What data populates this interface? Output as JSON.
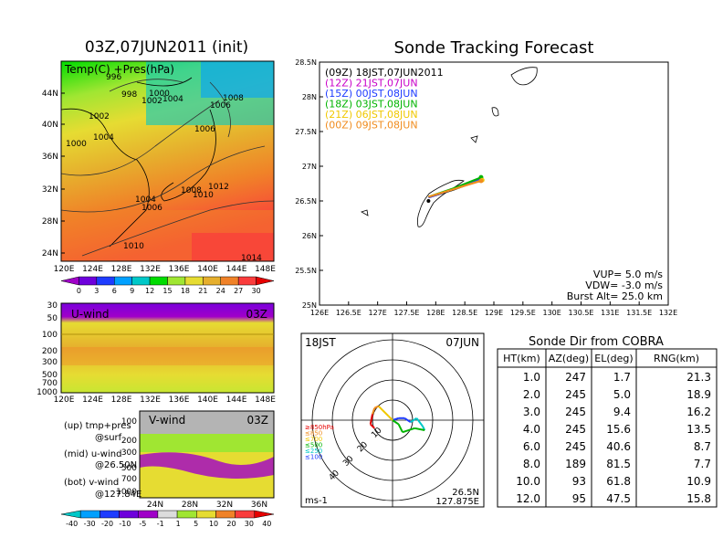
{
  "left_panel": {
    "title": "03Z,07JUN2011 (init)",
    "map": {
      "field_label": "Temp(C) +Pres(hPa)",
      "lat_ticks": [
        "44N",
        "40N",
        "36N",
        "32N",
        "28N",
        "24N"
      ],
      "lon_ticks": [
        "120E",
        "124E",
        "128E",
        "132E",
        "136E",
        "140E",
        "144E",
        "148E"
      ],
      "isobar_labels": [
        "996",
        "998",
        "1000",
        "1002",
        "1004",
        "1002",
        "1000",
        "1004",
        "1004",
        "1008",
        "1006",
        "1006",
        "1008",
        "1012",
        "1010",
        "1006",
        "1010",
        "1014"
      ],
      "colorbar_labels": [
        "0",
        "3",
        "6",
        "9",
        "12",
        "15",
        "18",
        "21",
        "24",
        "27",
        "30"
      ],
      "colorbar_colors": [
        "#a000c8",
        "#6e00dc",
        "#1e3cff",
        "#00a0ff",
        "#00c8c8",
        "#00dc00",
        "#a0e632",
        "#e6dc32",
        "#e6af2d",
        "#f08228",
        "#fa3c3c",
        "#e60000"
      ]
    },
    "u_panel": {
      "label": "U-wind",
      "time": "03Z",
      "y_ticks": [
        "30",
        "50",
        "100",
        "200",
        "300",
        "500",
        "700",
        "1000"
      ],
      "x_ticks": [
        "120E",
        "124E",
        "128E",
        "132E",
        "136E",
        "140E",
        "144E",
        "148E"
      ]
    },
    "v_panel": {
      "label": "V-wind",
      "time": "03Z",
      "y_ticks": [
        "100",
        "200",
        "300",
        "500",
        "700",
        "1000"
      ],
      "x_ticks": [
        "24N",
        "28N",
        "32N",
        "36N"
      ]
    },
    "legend_notes": [
      {
        "top": "(up) tmp+pres",
        "bottom": "@surf"
      },
      {
        "top": "(mid) u-wind",
        "bottom": "@26.50N"
      },
      {
        "top": "(bot) v-wind",
        "bottom": "@127.84E"
      }
    ],
    "wind_colorbar": {
      "labels": [
        "-40",
        "-30",
        "-20",
        "-10",
        "-5",
        "-1",
        "1",
        "5",
        "10",
        "20",
        "30",
        "40"
      ],
      "colors": [
        "#00c8c8",
        "#00a0ff",
        "#1e3cff",
        "#6e00dc",
        "#a000c8",
        "#dcdcdc",
        "#a0e632",
        "#e6dc32",
        "#f08228",
        "#fa3c3c",
        "#e60000"
      ]
    }
  },
  "tracking": {
    "title": "Sonde Tracking Forecast",
    "legend": [
      {
        "text": "(09Z)  18JST,07JUN2011",
        "color": "#000000"
      },
      {
        "text": "(12Z)  21JST,07JUN",
        "color": "#c800c8"
      },
      {
        "text": "(15Z)  00JST,08JUN",
        "color": "#1e3cff"
      },
      {
        "text": "(18Z)  03JST,08JUN",
        "color": "#00b400"
      },
      {
        "text": "(21Z)  06JST,08JUN",
        "color": "#f0c800"
      },
      {
        "text": "(00Z)  09JST,08JUN",
        "color": "#f08c1e"
      }
    ],
    "lat_ticks": [
      "28.5N",
      "28N",
      "27.5N",
      "27N",
      "26.5N",
      "26N",
      "25.5N",
      "25N"
    ],
    "lon_ticks": [
      "126E",
      "126.5E",
      "127E",
      "127.5E",
      "128E",
      "128.5E",
      "129E",
      "129.5E",
      "130E",
      "130.5E",
      "131E",
      "131.5E",
      "132E"
    ],
    "params": [
      "VUP= 5.0 m/s",
      "VDW= -3.0 m/s",
      "Burst Alt= 25.0 km"
    ]
  },
  "hodograph": {
    "time": "18JST",
    "date": "07JUN",
    "ring_labels": [
      "10",
      "20",
      "30",
      "40"
    ],
    "legend": [
      {
        "text": "≥850hPa",
        "color": "#e60000"
      },
      {
        "text": "≤850",
        "color": "#f08c1e"
      },
      {
        "text": "≤700",
        "color": "#f0c800"
      },
      {
        "text": "≤500",
        "color": "#00b400"
      },
      {
        "text": "≤250",
        "color": "#00c8c8"
      },
      {
        "text": "≤100",
        "color": "#1e3cff"
      }
    ],
    "units": "ms-1",
    "loc_lat": "26.5N",
    "loc_lon": "127.875E"
  },
  "sonde_dir": {
    "title": "Sonde Dir from COBRA",
    "headers": [
      "HT(km)",
      "AZ(deg)",
      "EL(deg)",
      "RNG(km)"
    ],
    "rows": [
      [
        "1.0",
        "247",
        "1.7",
        "21.3"
      ],
      [
        "2.0",
        "245",
        "5.0",
        "18.9"
      ],
      [
        "3.0",
        "245",
        "9.4",
        "16.2"
      ],
      [
        "4.0",
        "245",
        "15.6",
        "13.5"
      ],
      [
        "6.0",
        "245",
        "40.6",
        "8.7"
      ],
      [
        "8.0",
        "189",
        "81.5",
        "7.7"
      ],
      [
        "10.0",
        "93",
        "61.8",
        "10.9"
      ],
      [
        "12.0",
        "95",
        "47.5",
        "15.8"
      ]
    ]
  },
  "chart_data": [
    {
      "type": "heatmap",
      "title": "03Z,07JUN2011 (init)",
      "field": "Temp(C) +Pres(hPa)",
      "x_ticks": [
        "120E",
        "124E",
        "128E",
        "132E",
        "136E",
        "140E",
        "144E",
        "148E"
      ],
      "y_ticks": [
        "24N",
        "28N",
        "32N",
        "36N",
        "40N",
        "44N"
      ],
      "colorbar": [
        0,
        3,
        6,
        9,
        12,
        15,
        18,
        21,
        24,
        27,
        30
      ],
      "isobars_hPa": [
        996,
        998,
        1000,
        1002,
        1004,
        1006,
        1008,
        1010,
        1012,
        1014
      ]
    },
    {
      "type": "heatmap",
      "title": "U-wind",
      "x_ticks": [
        "120E",
        "124E",
        "128E",
        "132E",
        "136E",
        "140E",
        "144E",
        "148E"
      ],
      "y_ticks_hPa": [
        30,
        50,
        100,
        200,
        300,
        500,
        700,
        1000
      ],
      "y_scale": "log"
    },
    {
      "type": "heatmap",
      "title": "V-wind",
      "x_ticks": [
        "24N",
        "28N",
        "32N",
        "36N"
      ],
      "y_ticks_hPa": [
        100,
        200,
        300,
        500,
        700,
        1000
      ],
      "y_scale": "log",
      "colorbar": [
        -40,
        -30,
        -20,
        -10,
        -5,
        -1,
        1,
        5,
        10,
        20,
        30,
        40
      ]
    },
    {
      "type": "line",
      "title": "Sonde Tracking Forecast",
      "xlim": [
        126,
        132
      ],
      "ylim": [
        25,
        28.5
      ],
      "x_ticks": [
        126,
        126.5,
        127,
        127.5,
        128,
        128.5,
        129,
        129.5,
        130,
        130.5,
        131,
        131.5,
        132
      ],
      "y_ticks": [
        25,
        25.5,
        26,
        26.5,
        27,
        27.5,
        28,
        28.5
      ],
      "launch_point": {
        "lon": 127.875,
        "lat": 26.5
      },
      "series": [
        {
          "name": "(09Z)  18JST,07JUN2011",
          "lon": [
            127.875,
            128.3,
            128.75
          ],
          "lat": [
            26.55,
            26.66,
            26.8
          ]
        },
        {
          "name": "(12Z)  21JST,07JUN",
          "lon": [
            127.875,
            128.3,
            128.76
          ],
          "lat": [
            26.55,
            26.67,
            26.81
          ]
        },
        {
          "name": "(15Z)  00JST,08JUN",
          "lon": [
            127.875,
            128.3,
            128.77
          ],
          "lat": [
            26.55,
            26.67,
            26.82
          ]
        },
        {
          "name": "(18Z)  03JST,08JUN",
          "lon": [
            127.875,
            128.3,
            128.78
          ],
          "lat": [
            26.56,
            26.68,
            26.84
          ]
        },
        {
          "name": "(21Z)  06JST,08JUN",
          "lon": [
            127.875,
            128.35,
            128.8
          ],
          "lat": [
            26.56,
            26.68,
            26.8
          ]
        },
        {
          "name": "(00Z)  09JST,08JUN",
          "lon": [
            127.875,
            128.35,
            128.78
          ],
          "lat": [
            26.56,
            26.68,
            26.79
          ]
        }
      ]
    },
    {
      "type": "line",
      "title": "Hodograph 18JST 07JUN",
      "rings_ms": [
        10,
        20,
        30,
        40
      ],
      "u": [
        0,
        -3,
        -6,
        -9,
        -12,
        -15,
        -16,
        -11,
        -5,
        -3,
        0,
        2,
        5,
        7,
        9,
        10,
        11,
        9
      ],
      "v": [
        0,
        1,
        1,
        -1,
        1,
        -3,
        -5,
        -4,
        -6,
        -2,
        0,
        2,
        5,
        7,
        6,
        3,
        -2,
        -4
      ]
    },
    {
      "type": "table",
      "title": "Sonde Dir from COBRA",
      "columns": [
        "HT(km)",
        "AZ(deg)",
        "EL(deg)",
        "RNG(km)"
      ],
      "rows": [
        [
          1.0,
          247,
          1.7,
          21.3
        ],
        [
          2.0,
          245,
          5.0,
          18.9
        ],
        [
          3.0,
          245,
          9.4,
          16.2
        ],
        [
          4.0,
          245,
          15.6,
          13.5
        ],
        [
          6.0,
          245,
          40.6,
          8.7
        ],
        [
          8.0,
          189,
          81.5,
          7.7
        ],
        [
          10.0,
          93,
          61.8,
          10.9
        ],
        [
          12.0,
          95,
          47.5,
          15.8
        ]
      ]
    }
  ]
}
